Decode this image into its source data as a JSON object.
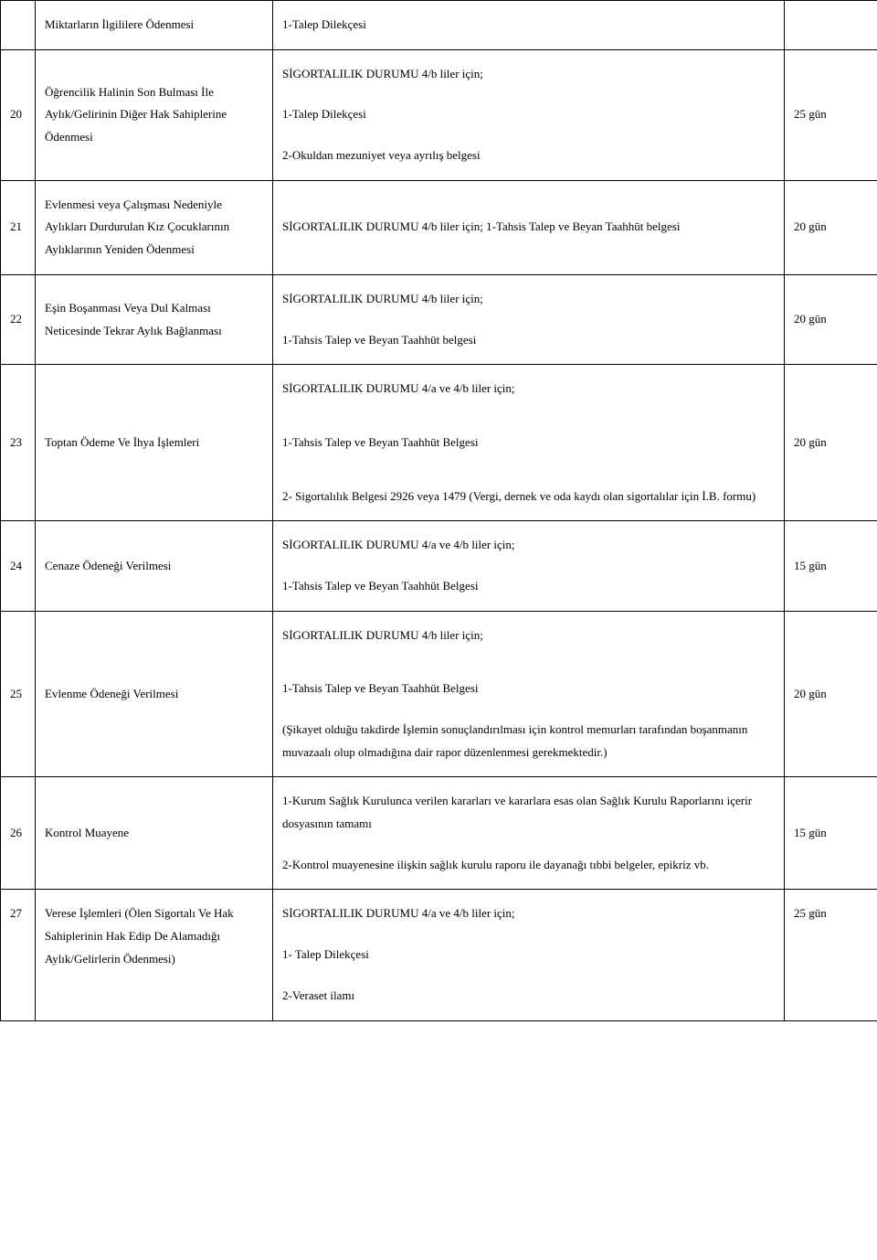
{
  "rows": [
    {
      "num": "",
      "desc": "Miktarların İlgililere Ödenmesi",
      "docs": [
        "1-Talep Dilekçesi"
      ],
      "dur": ""
    },
    {
      "num": "20",
      "desc": "Öğrencilik Halinin Son Bulması İle Aylık/Gelirinin Diğer Hak Sahiplerine Ödenmesi",
      "docs": [
        "SİGORTALILIK DURUMU  4/b  liler  için;",
        "",
        "1-Talep Dilekçesi",
        "",
        "2-Okuldan mezuniyet  veya ayrılış belgesi"
      ],
      "dur": "25 gün"
    },
    {
      "num": "21",
      "desc": "Evlenmesi veya Çalışması Nedeniyle Aylıkları Durdurulan Kız Çocuklarının Aylıklarının Yeniden Ödenmesi",
      "docs": [
        "SİGORTALILIK DURUMU  4/b  liler  için;  1-Tahsis Talep ve Beyan Taahhüt belgesi"
      ],
      "dur": "20 gün"
    },
    {
      "num": "22",
      "desc": "Eşin Boşanması Veya Dul Kalması Neticesinde Tekrar Aylık Bağlanması",
      "docs": [
        "SİGORTALILIK DURUMU  4/b  liler  için;",
        "",
        "1-Tahsis Talep ve Beyan Taahhüt belgesi"
      ],
      "dur": "20 gün"
    },
    {
      "num": "23",
      "desc": "Toptan Ödeme Ve İhya İşlemleri",
      "docs": [
        "SİGORTALILIK DURUMU 4/a ve  4/b  liler  için;",
        "",
        "",
        "1-Tahsis Talep ve Beyan Taahhüt Belgesi",
        "",
        "",
        "2- Sigortalılık Belgesi 2926 veya 1479  (Vergi, dernek ve oda kaydı olan sigortalılar için İ.B. formu)"
      ],
      "dur": "20 gün"
    },
    {
      "num": "24",
      "desc": "Cenaze Ödeneği Verilmesi",
      "docs": [
        "SİGORTALILIK DURUMU 4/a ve  4/b  liler  için;",
        "",
        "1-Tahsis Talep ve Beyan Taahhüt Belgesi"
      ],
      "dur": "15 gün"
    },
    {
      "num": "25",
      "desc": "Evlenme Ödeneği Verilmesi",
      "docs": [
        "SİGORTALILIK DURUMU  4/b  liler  için;",
        "",
        "",
        "1-Tahsis Talep ve Beyan Taahhüt Belgesi",
        "",
        "(Şikayet olduğu takdirde İşlemin sonuçlandırılması için kontrol memurları tarafından boşanmanın muvazaalı olup olmadığına dair rapor düzenlenmesi gerekmektedir.)"
      ],
      "dur": "20 gün"
    },
    {
      "num": "26",
      "desc": "Kontrol Muayene",
      "docs": [
        "1-Kurum Sağlık Kurulunca verilen kararları ve kararlara esas olan Sağlık Kurulu Raporlarını içerir dosyasının tamamı",
        "",
        "2-Kontrol muayenesine ilişkin sağlık kurulu raporu ile dayanağı tıbbi belgeler, epikriz vb."
      ],
      "dur": "15 gün"
    },
    {
      "num": "27",
      "desc": "Verese İşlemleri (Ölen Sigortalı Ve Hak Sahiplerinin  Hak Edip De Alamadığı Aylık/Gelirlerin Ödenmesi)",
      "docs": [
        "SİGORTALILIK DURUMU 4/a ve  4/b  liler  için;",
        "",
        "1- Talep Dilekçesi",
        "",
        "2-Veraset ilamı"
      ],
      "dur": "25 gün",
      "valign": "top"
    }
  ]
}
